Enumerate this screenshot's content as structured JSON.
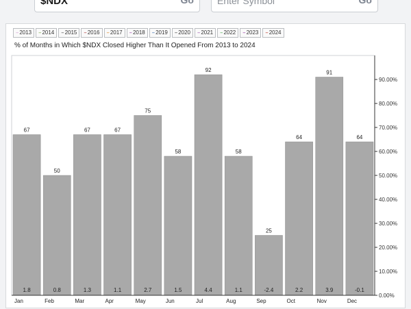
{
  "search": {
    "symbol_value": "$NDX",
    "go_label": "Go",
    "placeholder": "Enter Symbol",
    "go_label_2": "Go"
  },
  "legend": [
    {
      "label": "2013",
      "color": "#d4a0d4"
    },
    {
      "label": "2014",
      "color": "#7fae4a"
    },
    {
      "label": "2015",
      "color": "#555555"
    },
    {
      "label": "2016",
      "color": "#b03a3a"
    },
    {
      "label": "2017",
      "color": "#e08a2a"
    },
    {
      "label": "2018",
      "color": "#a04cb0"
    },
    {
      "label": "2019",
      "color": "#3a6fb0"
    },
    {
      "label": "2020",
      "color": "#444444"
    },
    {
      "label": "2021",
      "color": "#a05ab0"
    },
    {
      "label": "2022",
      "color": "#4caf50"
    },
    {
      "label": "2023",
      "color": "#9a3fa8"
    },
    {
      "label": "2024",
      "color": "#c0392b"
    }
  ],
  "chart_data": {
    "type": "bar",
    "title": "% of Months in Which $NDX Closed Higher Than It Opened From 2013 to 2024",
    "categories": [
      "Jan",
      "Feb",
      "Mar",
      "Apr",
      "May",
      "Jun",
      "Jul",
      "Aug",
      "Sep",
      "Oct",
      "Nov",
      "Dec"
    ],
    "values": [
      67,
      50,
      67,
      67,
      75,
      58,
      92,
      58,
      25,
      64,
      91,
      64
    ],
    "value_labels": [
      "67",
      "50",
      "67",
      "67",
      "75",
      "58",
      "92",
      "58",
      "25",
      "64",
      "91",
      "64"
    ],
    "bottom_labels": [
      "1.8",
      "0.8",
      "1.3",
      "1.1",
      "2.7",
      "1.5",
      "4.4",
      "1.1",
      "-2.4",
      "2.2",
      "3.9",
      "-0.1"
    ],
    "y_ticks": [
      0,
      10,
      20,
      30,
      40,
      50,
      60,
      70,
      80,
      90
    ],
    "y_tick_labels": [
      "0.00%",
      "10.00%",
      "20.00%",
      "30.00%",
      "40.00%",
      "50.00%",
      "60.00%",
      "70.00%",
      "80.00%",
      "90.00%"
    ],
    "ylim": [
      0,
      100
    ],
    "y_axis_side": "right",
    "grid": false,
    "bar_color": "#a9a9a9"
  }
}
